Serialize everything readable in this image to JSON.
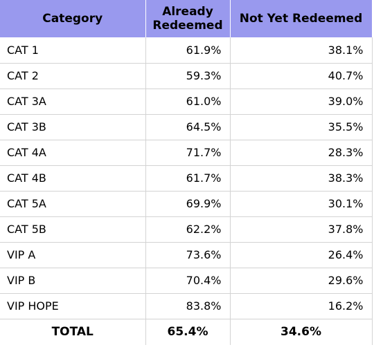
{
  "chart_data": {
    "type": "table",
    "columns": [
      "Category",
      "Already Redeemed",
      "Not Yet Redeemed"
    ],
    "header_lines": [
      [
        "Category"
      ],
      [
        "Already",
        "Redeemed"
      ],
      [
        "Not Yet Redeemed"
      ]
    ],
    "rows": [
      {
        "category": "CAT 1",
        "already_redeemed": "61.9%",
        "not_yet_redeemed": "38.1%"
      },
      {
        "category": "CAT 2",
        "already_redeemed": "59.3%",
        "not_yet_redeemed": "40.7%"
      },
      {
        "category": "CAT 3A",
        "already_redeemed": "61.0%",
        "not_yet_redeemed": "39.0%"
      },
      {
        "category": "CAT 3B",
        "already_redeemed": "64.5%",
        "not_yet_redeemed": "35.5%"
      },
      {
        "category": "CAT 4A",
        "already_redeemed": "71.7%",
        "not_yet_redeemed": "28.3%"
      },
      {
        "category": "CAT 4B",
        "already_redeemed": "61.7%",
        "not_yet_redeemed": "38.3%"
      },
      {
        "category": "CAT 5A",
        "already_redeemed": "69.9%",
        "not_yet_redeemed": "30.1%"
      },
      {
        "category": "CAT 5B",
        "already_redeemed": "62.2%",
        "not_yet_redeemed": "37.8%"
      },
      {
        "category": "VIP A",
        "already_redeemed": "73.6%",
        "not_yet_redeemed": "26.4%"
      },
      {
        "category": "VIP B",
        "already_redeemed": "70.4%",
        "not_yet_redeemed": "29.6%"
      },
      {
        "category": "VIP HOPE",
        "already_redeemed": "83.8%",
        "not_yet_redeemed": "16.2%"
      }
    ],
    "total": {
      "category": "TOTAL",
      "already_redeemed": "65.4%",
      "not_yet_redeemed": "34.6%"
    }
  },
  "colors": {
    "header_background": "#9999ee",
    "grid_line": "#d3d3d3",
    "text": "#000000"
  }
}
